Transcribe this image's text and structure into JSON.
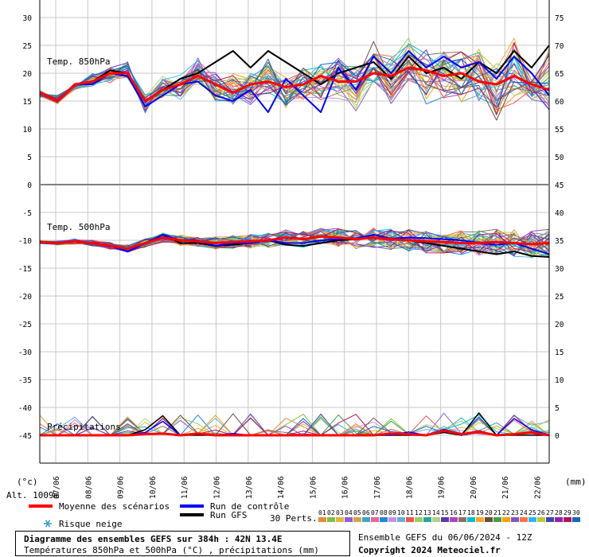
{
  "chart_data": {
    "type": "line",
    "days": [
      "07/06",
      "08/06",
      "09/06",
      "10/06",
      "11/06",
      "12/06",
      "13/06",
      "14/06",
      "15/06",
      "16/06",
      "17/06",
      "18/06",
      "19/06",
      "20/06",
      "21/06",
      "22/06"
    ],
    "left_ticks": [
      "30",
      "25",
      "20",
      "15",
      "10",
      "5",
      "0",
      "-5",
      "-10",
      "-15",
      "-20",
      "-25",
      "-30",
      "-35",
      "-40",
      "-45"
    ],
    "right_ticks_top": [
      "75",
      "70",
      "65",
      "60",
      "55",
      "50",
      "45"
    ],
    "right_ticks_bottom": [
      "40",
      "35",
      "30",
      "25",
      "20",
      "15",
      "10",
      "5",
      "0"
    ],
    "left_unit": "(°c)",
    "right_unit": "(mm)",
    "altitude": "Alt. 1009m",
    "panels": {
      "t850": {
        "label": "Temp. 850hPa",
        "mean": [
          16.5,
          15,
          18,
          18.5,
          20,
          20,
          15,
          17,
          18,
          19.5,
          18,
          16.5,
          18,
          18.5,
          17.5,
          18,
          19.5,
          18.5,
          18.5,
          20,
          19.5,
          21,
          20.5,
          19.5,
          20,
          18.5,
          18,
          19.5,
          18,
          17
        ],
        "control": [
          16.5,
          15,
          18,
          18,
          20,
          19.5,
          14,
          16,
          18,
          18.5,
          16,
          15,
          17,
          13,
          19,
          16,
          13,
          21,
          17,
          23,
          20,
          24,
          21,
          23,
          21,
          22,
          19,
          23,
          20,
          16
        ],
        "gfs": [
          16.5,
          15,
          18,
          18.5,
          20.5,
          20,
          15,
          17,
          19,
          20,
          22,
          24,
          21,
          24,
          22,
          20,
          18,
          20,
          21,
          22,
          19,
          23,
          20,
          21,
          19,
          22,
          20,
          24,
          21,
          25
        ],
        "ylim": [
          0,
          30
        ]
      },
      "t500": {
        "label": "Temp. 500hPa",
        "mean": [
          -10.3,
          -10.5,
          -10.2,
          -10.5,
          -11,
          -11.5,
          -10.5,
          -9.5,
          -10,
          -10.2,
          -10.5,
          -10.3,
          -10.2,
          -10,
          -9.5,
          -9.8,
          -9.3,
          -9.5,
          -9.8,
          -9.5,
          -9.8,
          -10,
          -10.2,
          -10.3,
          -10.5,
          -10.5,
          -10.3,
          -10.5,
          -10.7,
          -10.5
        ],
        "control": [
          -10.3,
          -10.5,
          -10.2,
          -10.5,
          -11,
          -12,
          -10.5,
          -9,
          -10,
          -10,
          -11,
          -10.5,
          -10.5,
          -10,
          -10.5,
          -10.5,
          -10,
          -9.8,
          -9.7,
          -9,
          -9.7,
          -9.5,
          -9.6,
          -9.8,
          -10,
          -10.5,
          -10.8,
          -10.5,
          -11.5,
          -12.5
        ],
        "gfs": [
          -10.3,
          -10.5,
          -10.2,
          -10.5,
          -11,
          -12,
          -10.5,
          -9,
          -10.5,
          -10.5,
          -11,
          -10.8,
          -10.5,
          -10,
          -10.8,
          -11,
          -10.5,
          -10,
          -9.8,
          -9.5,
          -9.8,
          -10,
          -10.5,
          -11,
          -11.5,
          -12,
          -12.5,
          -12,
          -12.8,
          -13
        ],
        "ylim": [
          -45,
          -5
        ]
      },
      "precip": {
        "label": "Précipitations",
        "mean": [
          0,
          0,
          0,
          0,
          0,
          0,
          0.2,
          0.3,
          0,
          0.3,
          0,
          0,
          0,
          0,
          0,
          0,
          0,
          0,
          0,
          0,
          0.3,
          0.2,
          0,
          0.8,
          0.2,
          0.6,
          0,
          0.2,
          0.5,
          0
        ],
        "control": [
          0,
          0,
          0,
          0,
          0,
          0,
          0.5,
          2.5,
          0,
          0.2,
          0,
          0.3,
          0,
          0,
          0,
          0,
          0,
          0,
          0,
          0,
          0,
          0.6,
          0,
          1,
          0,
          0.5,
          0,
          3,
          1,
          0
        ],
        "gfs": [
          0,
          0,
          0,
          0,
          0,
          0,
          1,
          3.5,
          0,
          0,
          0,
          0,
          0,
          0,
          0,
          0,
          0,
          0,
          0,
          0,
          0,
          0,
          0,
          0.5,
          0,
          4,
          0,
          0,
          0,
          0
        ],
        "ylim": [
          0,
          45
        ]
      }
    },
    "perturbations": {
      "count": 30,
      "colors": [
        "#e98a3c",
        "#7bc043",
        "#e8b33f",
        "#8860d0",
        "#d8a04c",
        "#3aa7c7",
        "#f06292",
        "#1e88e5",
        "#c98ee8",
        "#61b1d6",
        "#ef5350",
        "#9ccc65",
        "#26a69a",
        "#aed581",
        "#5e35b1",
        "#ab47bc",
        "#8d6e63",
        "#00bcd4",
        "#f9a825",
        "#6d4c41",
        "#43a047",
        "#ffa000",
        "#7e57c2",
        "#ff7043",
        "#29b6f6",
        "#c0ca33",
        "#3949ab",
        "#8e24aa",
        "#ad1457",
        "#1565c0"
      ]
    },
    "legend": {
      "mean_label": "Moyenne des scénarios",
      "control_label": "Run de contrôle",
      "gfs_label": "Run GFS",
      "snow_label": "Risque neige",
      "perts_label": "30 Perts.",
      "pert_numbers": [
        "01",
        "02",
        "03",
        "04",
        "05",
        "06",
        "07",
        "08",
        "09",
        "10",
        "11",
        "12",
        "13",
        "14",
        "15",
        "16",
        "17",
        "18",
        "19",
        "20",
        "21",
        "22",
        "23",
        "24",
        "25",
        "26",
        "27",
        "28",
        "29",
        "30"
      ],
      "mean_color": "#ff0000",
      "control_color": "#0000ff",
      "gfs_color": "#000000"
    }
  },
  "footer": {
    "title": "Diagramme des ensembles GEFS sur 384h : 42N 13.4E",
    "subtitle": "Températures 850hPa et 500hPa (°C) , précipitations (mm)",
    "ensemble": "Ensemble GEFS du 06/06/2024 - 12Z",
    "copyright": "Copyright 2024 Meteociel.fr"
  }
}
